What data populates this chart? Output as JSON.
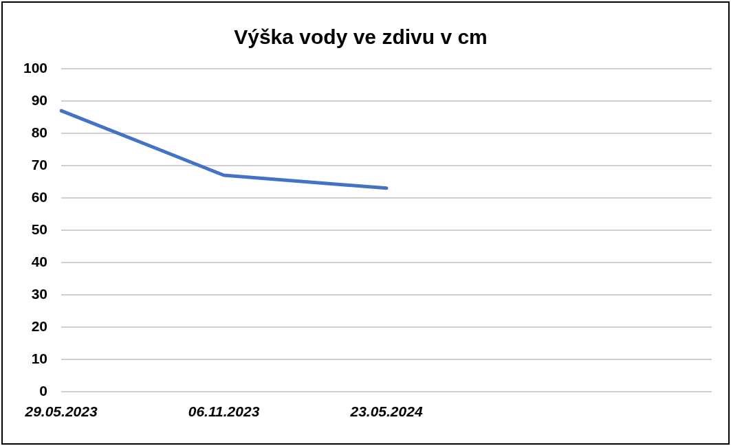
{
  "chart_data": {
    "type": "line",
    "title": "Výška vody ve zdivu v cm",
    "categories": [
      "29.05.2023",
      "06.11.2023",
      "23.05.2024",
      null,
      null
    ],
    "series": [
      {
        "color": "#4472c4",
        "values": [
          87,
          67,
          63,
          null,
          null
        ]
      }
    ],
    "ylim": [
      0,
      100
    ],
    "yticks": [
      0,
      10,
      20,
      30,
      40,
      50,
      60,
      70,
      80,
      90,
      100
    ],
    "grid": "y",
    "legend": false,
    "marker": "none",
    "line_style": "solid"
  }
}
